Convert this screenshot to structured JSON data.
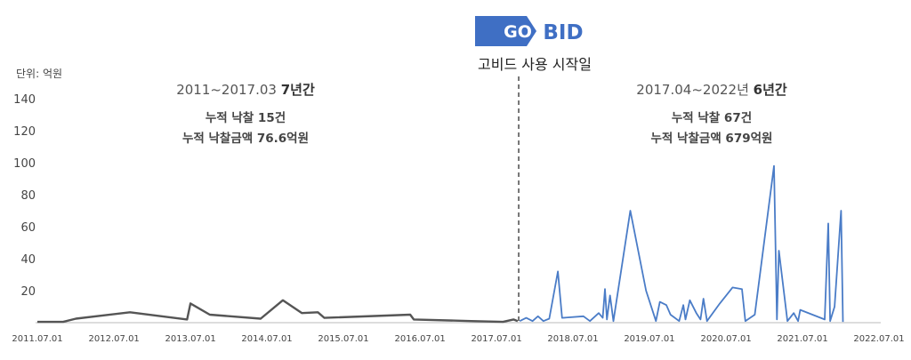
{
  "chart_data": {
    "type": "line",
    "unit_label": "단위: 억원",
    "y_ticks": [
      "20",
      "40",
      "60",
      "80",
      "100",
      "120",
      "140"
    ],
    "ylim": [
      0,
      140
    ],
    "x_ticks": [
      "2011.07.01",
      "2012.07.01",
      "2013.07.01",
      "2014.07.01",
      "2015.07.01",
      "2016.07.01",
      "2017.07.01",
      "2018.07.01",
      "2019.07.01",
      "2020.07.01",
      "2021.07.01",
      "2022.07.01"
    ],
    "xlim": [
      "2011-07-01",
      "2022-07-01"
    ],
    "divider_date": "2017-10-15",
    "logo": {
      "left": "GO",
      "right": "BID"
    },
    "start_label": "고비드 사용 시작일",
    "annotations": {
      "before": {
        "period": "2011~2017.03",
        "period_bold": "7년간",
        "count": "누적 낙찰 15건",
        "amount": "누적 낙찰금액 76.6억원"
      },
      "after": {
        "period": "2017.04~2022년",
        "period_bold": "6년간",
        "count": "누적 낙찰 67건",
        "amount": "누적 낙찰금액 679억원"
      }
    },
    "colors": {
      "before": "#555555",
      "after": "#4a7cc7",
      "divider": "#555555",
      "logo_bg": "#3f6fc4"
    },
    "series": [
      {
        "values": [
          [
            "2011-07-01",
            0.5
          ],
          [
            "2011-11-01",
            0.5
          ],
          [
            "2012-01-01",
            2.5
          ],
          [
            "2012-09-15",
            6.5
          ],
          [
            "2013-06-15",
            2
          ],
          [
            "2013-07-01",
            12
          ],
          [
            "2013-10-01",
            5
          ],
          [
            "2014-06-01",
            2.5
          ],
          [
            "2014-09-15",
            14
          ],
          [
            "2014-12-15",
            6
          ],
          [
            "2015-03-01",
            6.5
          ],
          [
            "2015-04-01",
            3
          ],
          [
            "2016-05-15",
            5
          ],
          [
            "2016-06-01",
            2
          ],
          [
            "2017-03-01",
            1
          ],
          [
            "2017-08-01",
            0.5
          ],
          [
            "2017-09-20",
            2
          ],
          [
            "2017-10-10",
            1
          ]
        ]
      },
      {
        "values": [
          [
            "2017-10-20",
            1
          ],
          [
            "2017-11-20",
            3
          ],
          [
            "2017-12-20",
            1
          ],
          [
            "2018-01-15",
            4
          ],
          [
            "2018-02-10",
            1
          ],
          [
            "2018-03-10",
            2.5
          ],
          [
            "2018-04-20",
            32
          ],
          [
            "2018-05-10",
            3
          ],
          [
            "2018-08-20",
            4
          ],
          [
            "2018-09-20",
            1
          ],
          [
            "2018-11-01",
            6
          ],
          [
            "2018-11-20",
            3
          ],
          [
            "2018-12-01",
            21
          ],
          [
            "2018-12-10",
            2
          ],
          [
            "2018-12-25",
            17
          ],
          [
            "2019-01-10",
            1
          ],
          [
            "2019-04-01",
            70
          ],
          [
            "2019-06-15",
            20
          ],
          [
            "2019-08-01",
            1
          ],
          [
            "2019-08-20",
            13
          ],
          [
            "2019-09-20",
            11
          ],
          [
            "2019-10-10",
            5
          ],
          [
            "2019-11-20",
            1
          ],
          [
            "2019-12-10",
            11
          ],
          [
            "2019-12-20",
            2
          ],
          [
            "2020-01-10",
            14
          ],
          [
            "2020-02-10",
            6
          ],
          [
            "2020-03-01",
            2
          ],
          [
            "2020-03-15",
            15
          ],
          [
            "2020-04-01",
            1
          ],
          [
            "2020-06-01",
            12
          ],
          [
            "2020-08-01",
            22
          ],
          [
            "2020-09-15",
            21
          ],
          [
            "2020-10-01",
            1
          ],
          [
            "2020-11-15",
            5
          ],
          [
            "2021-02-15",
            98
          ],
          [
            "2021-03-01",
            2
          ],
          [
            "2021-03-10",
            45
          ],
          [
            "2021-04-20",
            1
          ],
          [
            "2021-05-20",
            6
          ],
          [
            "2021-06-10",
            1
          ],
          [
            "2021-06-20",
            8
          ],
          [
            "2021-10-15",
            2
          ],
          [
            "2021-11-01",
            62
          ],
          [
            "2021-11-10",
            1
          ],
          [
            "2021-12-01",
            10
          ],
          [
            "2022-01-01",
            70
          ],
          [
            "2022-01-10",
            0.5
          ]
        ]
      }
    ]
  }
}
